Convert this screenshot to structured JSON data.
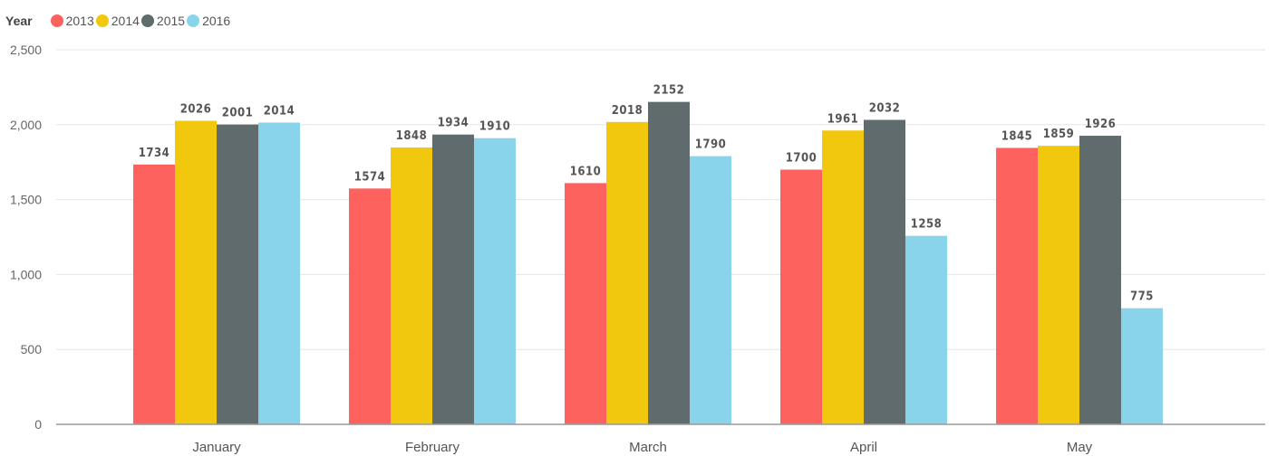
{
  "chart_data": {
    "type": "bar",
    "legend_title": "Year",
    "legend_position": "top-left",
    "categories": [
      "January",
      "February",
      "March",
      "April",
      "May"
    ],
    "series": [
      {
        "name": "2013",
        "color": "#FD625E",
        "values": [
          1734,
          1574,
          1610,
          1700,
          1845
        ]
      },
      {
        "name": "2014",
        "color": "#F2C80F",
        "values": [
          2026,
          1848,
          2018,
          1961,
          1859
        ]
      },
      {
        "name": "2015",
        "color": "#5F6B6D",
        "values": [
          2001,
          1934,
          2152,
          2032,
          1926
        ]
      },
      {
        "name": "2016",
        "color": "#8AD4EB",
        "values": [
          2014,
          1910,
          1790,
          1258,
          775
        ]
      }
    ],
    "ylim": [
      0,
      2500
    ],
    "yticks": [
      0,
      500,
      1000,
      1500,
      2000,
      2500
    ],
    "ytick_labels": [
      "0",
      "500",
      "1,000",
      "1,500",
      "2,000",
      "2,500"
    ],
    "grid": true,
    "data_labels": true,
    "xlabel": "",
    "ylabel": ""
  }
}
